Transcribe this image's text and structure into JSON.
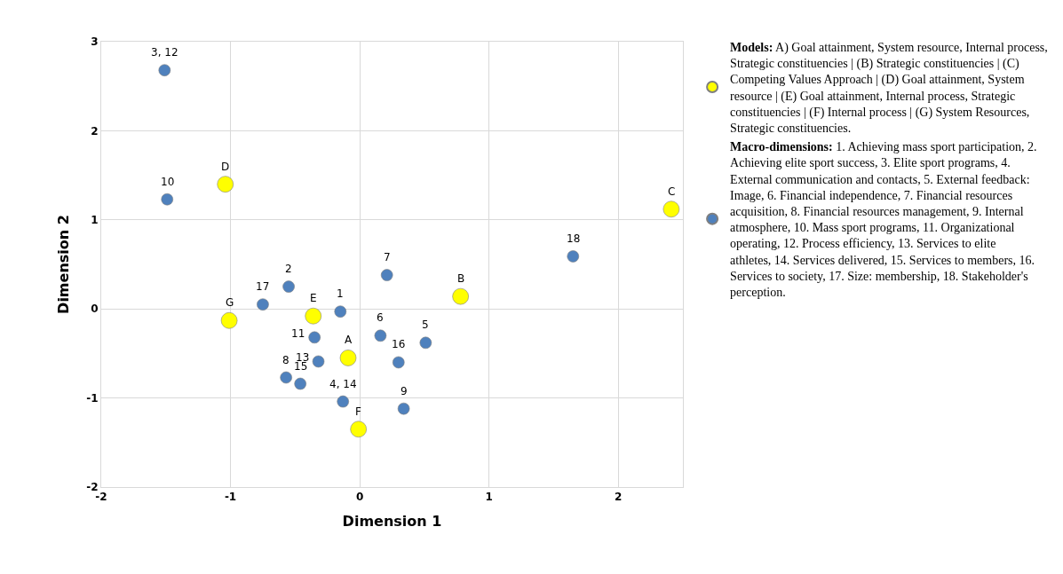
{
  "chart_data": {
    "type": "scatter",
    "xlabel": "Dimension 1",
    "ylabel": "Dimension 2",
    "xlim": [
      -2,
      2.5
    ],
    "xticks": [
      -2,
      -1,
      0,
      1,
      2
    ],
    "ylim": [
      -2,
      3
    ],
    "yticks": [
      -2,
      -1,
      0,
      1,
      2,
      3
    ],
    "grid": true,
    "legend": "right",
    "marker": "circle",
    "series": [
      {
        "name": "Models: A) Goal attainment, System resource, Internal process, Strategic constituencies | (B) Strategic constituencies | (C) Competing Values Approach | (D) Goal attainment, System resource | (E) Goal attainment, Internal process, Strategic constituencies | (F) Internal process | (G) System Resources, Strategic constituencies.",
        "color": "#ffff00",
        "x": [
          -0.09,
          0.78,
          2.41,
          -1.04,
          -0.36,
          -0.01,
          -1.01
        ],
        "values": [
          -0.55,
          0.14,
          1.12,
          1.4,
          -0.08,
          -1.35,
          -0.13
        ]
      },
      {
        "name": "Macro-dimensions: 1. Achieving mass sport participation, 2. Achieving elite sport success, 3. Elite sport programs, 4. External communication and contacts, 5. External feedback: Image, 6. Financial independence, 7. Financial resources acquisition, 8. Financial resources management, 9. Internal atmosphere, 10. Mass sport programs, 11. Organizational operating, 12. Process efficiency, 13. Services to elite athletes, 14. Services delivered, 15. Services to members, 16. Services to society, 17. Size: membership, 18. Stakeholder's perception.",
        "color": "#4f81bd",
        "x": [
          -0.15,
          -0.55,
          -1.51,
          -0.13,
          0.51,
          0.16,
          0.21,
          -0.57,
          0.34,
          -1.49,
          -0.35,
          -0.32,
          -0.46,
          0.3,
          -0.75,
          1.65
        ],
        "values": [
          -0.03,
          0.25,
          2.68,
          -1.04,
          -0.38,
          -0.3,
          0.38,
          -0.77,
          -1.12,
          1.23,
          -0.32,
          -0.59,
          -0.84,
          -0.6,
          0.05,
          0.59
        ]
      }
    ],
    "annotations": [
      {
        "text": "A",
        "x": -0.09,
        "y": -0.55
      },
      {
        "text": "B",
        "x": 0.78,
        "y": 0.14
      },
      {
        "text": "C",
        "x": 2.41,
        "y": 1.12
      },
      {
        "text": "D",
        "x": -1.04,
        "y": 1.4
      },
      {
        "text": "E",
        "x": -0.36,
        "y": -0.08
      },
      {
        "text": "F",
        "x": -0.01,
        "y": -1.35
      },
      {
        "text": "G",
        "x": -1.01,
        "y": -0.13
      },
      {
        "text": "1",
        "x": -0.15,
        "y": -0.03
      },
      {
        "text": "2",
        "x": -0.55,
        "y": 0.25
      },
      {
        "text": "3, 12",
        "x": -1.51,
        "y": 2.68
      },
      {
        "text": "4, 14",
        "x": -0.13,
        "y": -1.04
      },
      {
        "text": "5",
        "x": 0.51,
        "y": -0.38
      },
      {
        "text": "6",
        "x": 0.16,
        "y": -0.3
      },
      {
        "text": "7",
        "x": 0.21,
        "y": 0.38
      },
      {
        "text": "8",
        "x": -0.57,
        "y": -0.77
      },
      {
        "text": "9",
        "x": 0.34,
        "y": -1.12
      },
      {
        "text": "10",
        "x": -1.49,
        "y": 1.23
      },
      {
        "text": "11",
        "x": -0.35,
        "y": -0.32
      },
      {
        "text": "13",
        "x": -0.32,
        "y": -0.59
      },
      {
        "text": "15",
        "x": -0.46,
        "y": -0.84
      },
      {
        "text": "16",
        "x": 0.3,
        "y": -0.6
      },
      {
        "text": "17",
        "x": -0.75,
        "y": 0.05
      },
      {
        "text": "18",
        "x": 1.65,
        "y": 0.59
      }
    ]
  }
}
